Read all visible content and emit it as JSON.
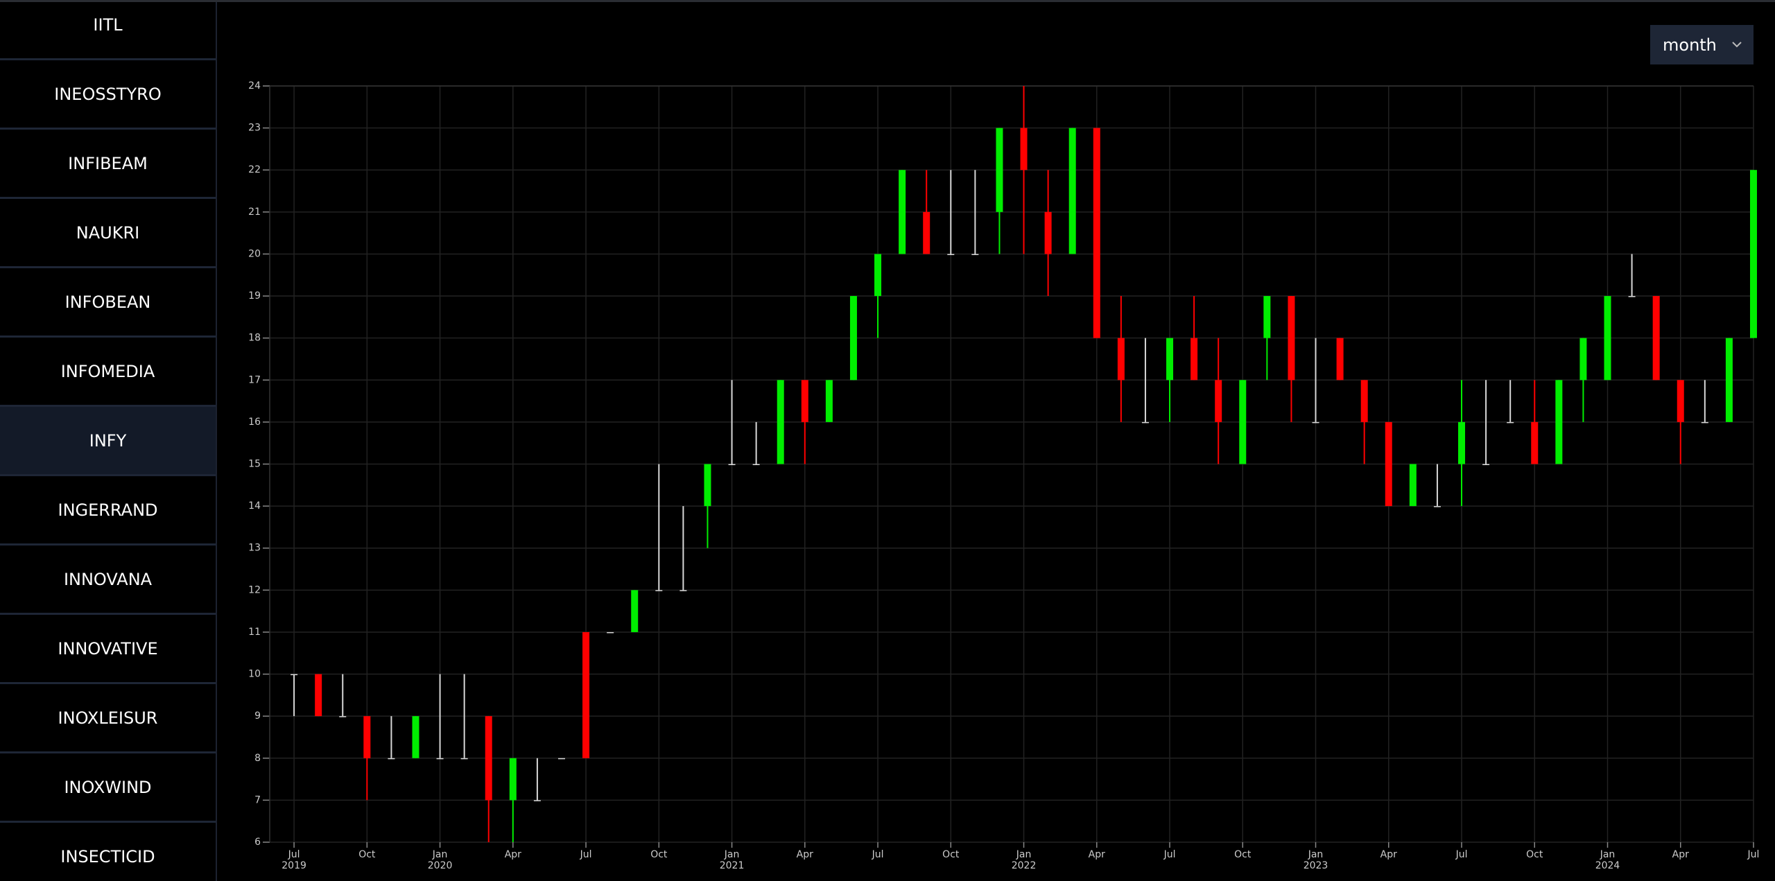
{
  "sidebar": {
    "items": [
      "IITL",
      "INEOSSTYRO",
      "INFIBEAM",
      "NAUKRI",
      "INFOBEAN",
      "INFOMEDIA",
      "INFY",
      "INGERRAND",
      "INNOVANA",
      "INNOVATIVE",
      "INOXLEISUR",
      "INOXWIND",
      "INSECTICID"
    ],
    "selected": 6
  },
  "dropdown": {
    "value": "month"
  },
  "chart_data": {
    "type": "candlestick",
    "x": [
      "2019-07",
      "2019-08",
      "2019-09",
      "2019-10",
      "2019-11",
      "2019-12",
      "2020-01",
      "2020-02",
      "2020-03",
      "2020-04",
      "2020-05",
      "2020-06",
      "2020-07",
      "2020-08",
      "2020-09",
      "2020-10",
      "2020-11",
      "2020-12",
      "2021-01",
      "2021-02",
      "2021-03",
      "2021-04",
      "2021-05",
      "2021-06",
      "2021-07",
      "2021-08",
      "2021-09",
      "2021-10",
      "2021-11",
      "2021-12",
      "2022-01",
      "2022-02",
      "2022-03",
      "2022-04",
      "2022-05",
      "2022-06",
      "2022-07",
      "2022-08",
      "2022-09",
      "2022-10",
      "2022-11",
      "2022-12",
      "2023-01",
      "2023-02",
      "2023-03",
      "2023-04",
      "2023-05",
      "2023-06",
      "2023-07",
      "2023-08",
      "2023-09",
      "2023-10",
      "2023-11",
      "2023-12",
      "2024-01",
      "2024-02",
      "2024-03",
      "2024-04",
      "2024-05",
      "2024-06",
      "2024-07"
    ],
    "open": [
      10,
      10,
      9,
      9,
      8,
      8,
      8,
      8,
      9,
      7,
      7,
      8,
      11,
      11,
      11,
      12,
      12,
      14,
      15,
      15,
      15,
      17,
      16,
      17,
      19,
      20,
      21,
      20,
      20,
      21,
      23,
      21,
      20,
      23,
      18,
      16,
      17,
      18,
      17,
      15,
      18,
      19,
      16,
      18,
      17,
      16,
      14,
      14,
      15,
      15,
      16,
      16,
      15,
      17,
      17,
      19,
      19,
      17,
      16,
      16,
      18
    ],
    "high": [
      10,
      10,
      10,
      9,
      9,
      9,
      10,
      10,
      9,
      8,
      8,
      8,
      11,
      11,
      12,
      15,
      14,
      15,
      17,
      16,
      17,
      17,
      17,
      19,
      20,
      22,
      22,
      22,
      22,
      23,
      24,
      22,
      23,
      23,
      19,
      18,
      18,
      19,
      18,
      17,
      19,
      19,
      18,
      18,
      17,
      16,
      15,
      15,
      17,
      17,
      17,
      17,
      17,
      18,
      19,
      20,
      19,
      17,
      17,
      18,
      22
    ],
    "low": [
      9,
      9,
      9,
      7,
      8,
      8,
      8,
      8,
      6,
      6,
      7,
      8,
      8,
      11,
      11,
      12,
      12,
      13,
      15,
      15,
      15,
      15,
      16,
      17,
      18,
      20,
      20,
      20,
      20,
      20,
      20,
      19,
      20,
      18,
      16,
      16,
      16,
      17,
      15,
      15,
      17,
      16,
      16,
      17,
      15,
      14,
      14,
      14,
      14,
      15,
      16,
      15,
      15,
      16,
      17,
      19,
      17,
      15,
      16,
      16,
      18
    ],
    "close": [
      10,
      9,
      9,
      8,
      8,
      9,
      8,
      8,
      7,
      8,
      7,
      8,
      8,
      11,
      12,
      12,
      12,
      15,
      15,
      15,
      17,
      16,
      17,
      19,
      20,
      22,
      20,
      20,
      20,
      23,
      22,
      20,
      23,
      18,
      17,
      16,
      18,
      17,
      16,
      17,
      19,
      17,
      16,
      17,
      16,
      14,
      15,
      14,
      16,
      15,
      16,
      15,
      17,
      18,
      19,
      19,
      17,
      16,
      16,
      18,
      22
    ],
    "up_color": "#00ee00",
    "down_color": "#ff0000",
    "flat_color": "#d8d8d8",
    "xlim": [
      "2019-06",
      "2024-07"
    ],
    "xticks": [
      {
        "value": "2019-07",
        "label": "Jul",
        "year": "2019"
      },
      {
        "value": "2019-10",
        "label": "Oct"
      },
      {
        "value": "2020-01",
        "label": "Jan",
        "year": "2020"
      },
      {
        "value": "2020-04",
        "label": "Apr"
      },
      {
        "value": "2020-07",
        "label": "Jul"
      },
      {
        "value": "2020-10",
        "label": "Oct"
      },
      {
        "value": "2021-01",
        "label": "Jan",
        "year": "2021"
      },
      {
        "value": "2021-04",
        "label": "Apr"
      },
      {
        "value": "2021-07",
        "label": "Jul"
      },
      {
        "value": "2021-10",
        "label": "Oct"
      },
      {
        "value": "2022-01",
        "label": "Jan",
        "year": "2022"
      },
      {
        "value": "2022-04",
        "label": "Apr"
      },
      {
        "value": "2022-07",
        "label": "Jul"
      },
      {
        "value": "2022-10",
        "label": "Oct"
      },
      {
        "value": "2023-01",
        "label": "Jan",
        "year": "2023"
      },
      {
        "value": "2023-04",
        "label": "Apr"
      },
      {
        "value": "2023-07",
        "label": "Jul"
      },
      {
        "value": "2023-10",
        "label": "Oct"
      },
      {
        "value": "2024-01",
        "label": "Jan",
        "year": "2024"
      },
      {
        "value": "2024-04",
        "label": "Apr"
      },
      {
        "value": "2024-07",
        "label": "Jul"
      }
    ],
    "ylim": [
      6,
      24
    ],
    "yticks": [
      6,
      7,
      8,
      9,
      10,
      11,
      12,
      13,
      14,
      15,
      16,
      17,
      18,
      19,
      20,
      21,
      22,
      23,
      24
    ],
    "grid": true
  }
}
